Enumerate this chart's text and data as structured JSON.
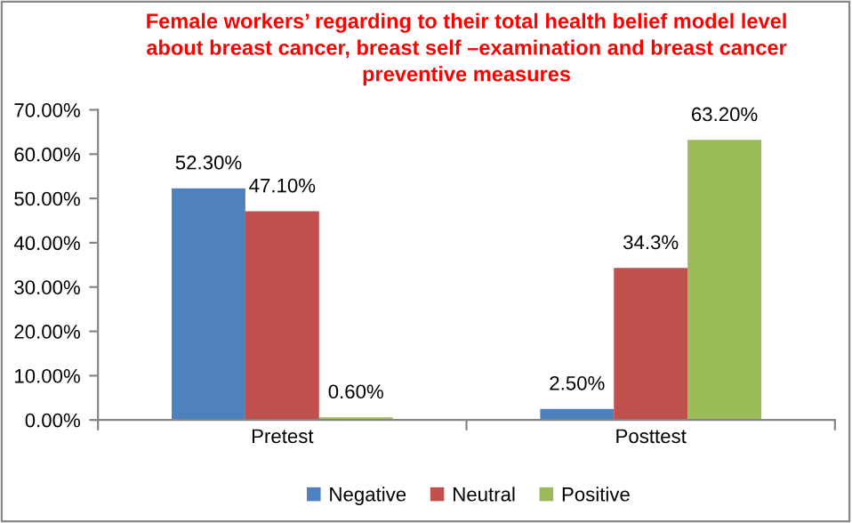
{
  "chart_data": {
    "type": "bar",
    "title": "Female workers’ regarding to their total health belief model level\nabout breast cancer, breast self –examination and breast cancer\npreventive measures",
    "categories": [
      "Pretest",
      "Posttest"
    ],
    "series": [
      {
        "name": "Negative",
        "color": "#4f81bd",
        "values": [
          52.3,
          2.5
        ],
        "value_labels": [
          "52.30%",
          "2.50%"
        ]
      },
      {
        "name": "Neutral",
        "color": "#c0504d",
        "values": [
          47.1,
          34.3
        ],
        "value_labels": [
          "47.10%",
          "34.3%"
        ]
      },
      {
        "name": "Positive",
        "color": "#9bbb59",
        "values": [
          0.6,
          63.2
        ],
        "value_labels": [
          "0.60%",
          "63.20%"
        ]
      }
    ],
    "ylim": [
      0,
      70
    ],
    "yticks": [
      {
        "value": 0,
        "label": "0.00%"
      },
      {
        "value": 10,
        "label": "10.00%"
      },
      {
        "value": 20,
        "label": "20.00%"
      },
      {
        "value": 30,
        "label": "30.00%"
      },
      {
        "value": 40,
        "label": "40.00%"
      },
      {
        "value": 50,
        "label": "50.00%"
      },
      {
        "value": 60,
        "label": "60.00%"
      },
      {
        "value": 70,
        "label": "70.00%"
      }
    ],
    "grid": false,
    "legend": "bottom"
  }
}
